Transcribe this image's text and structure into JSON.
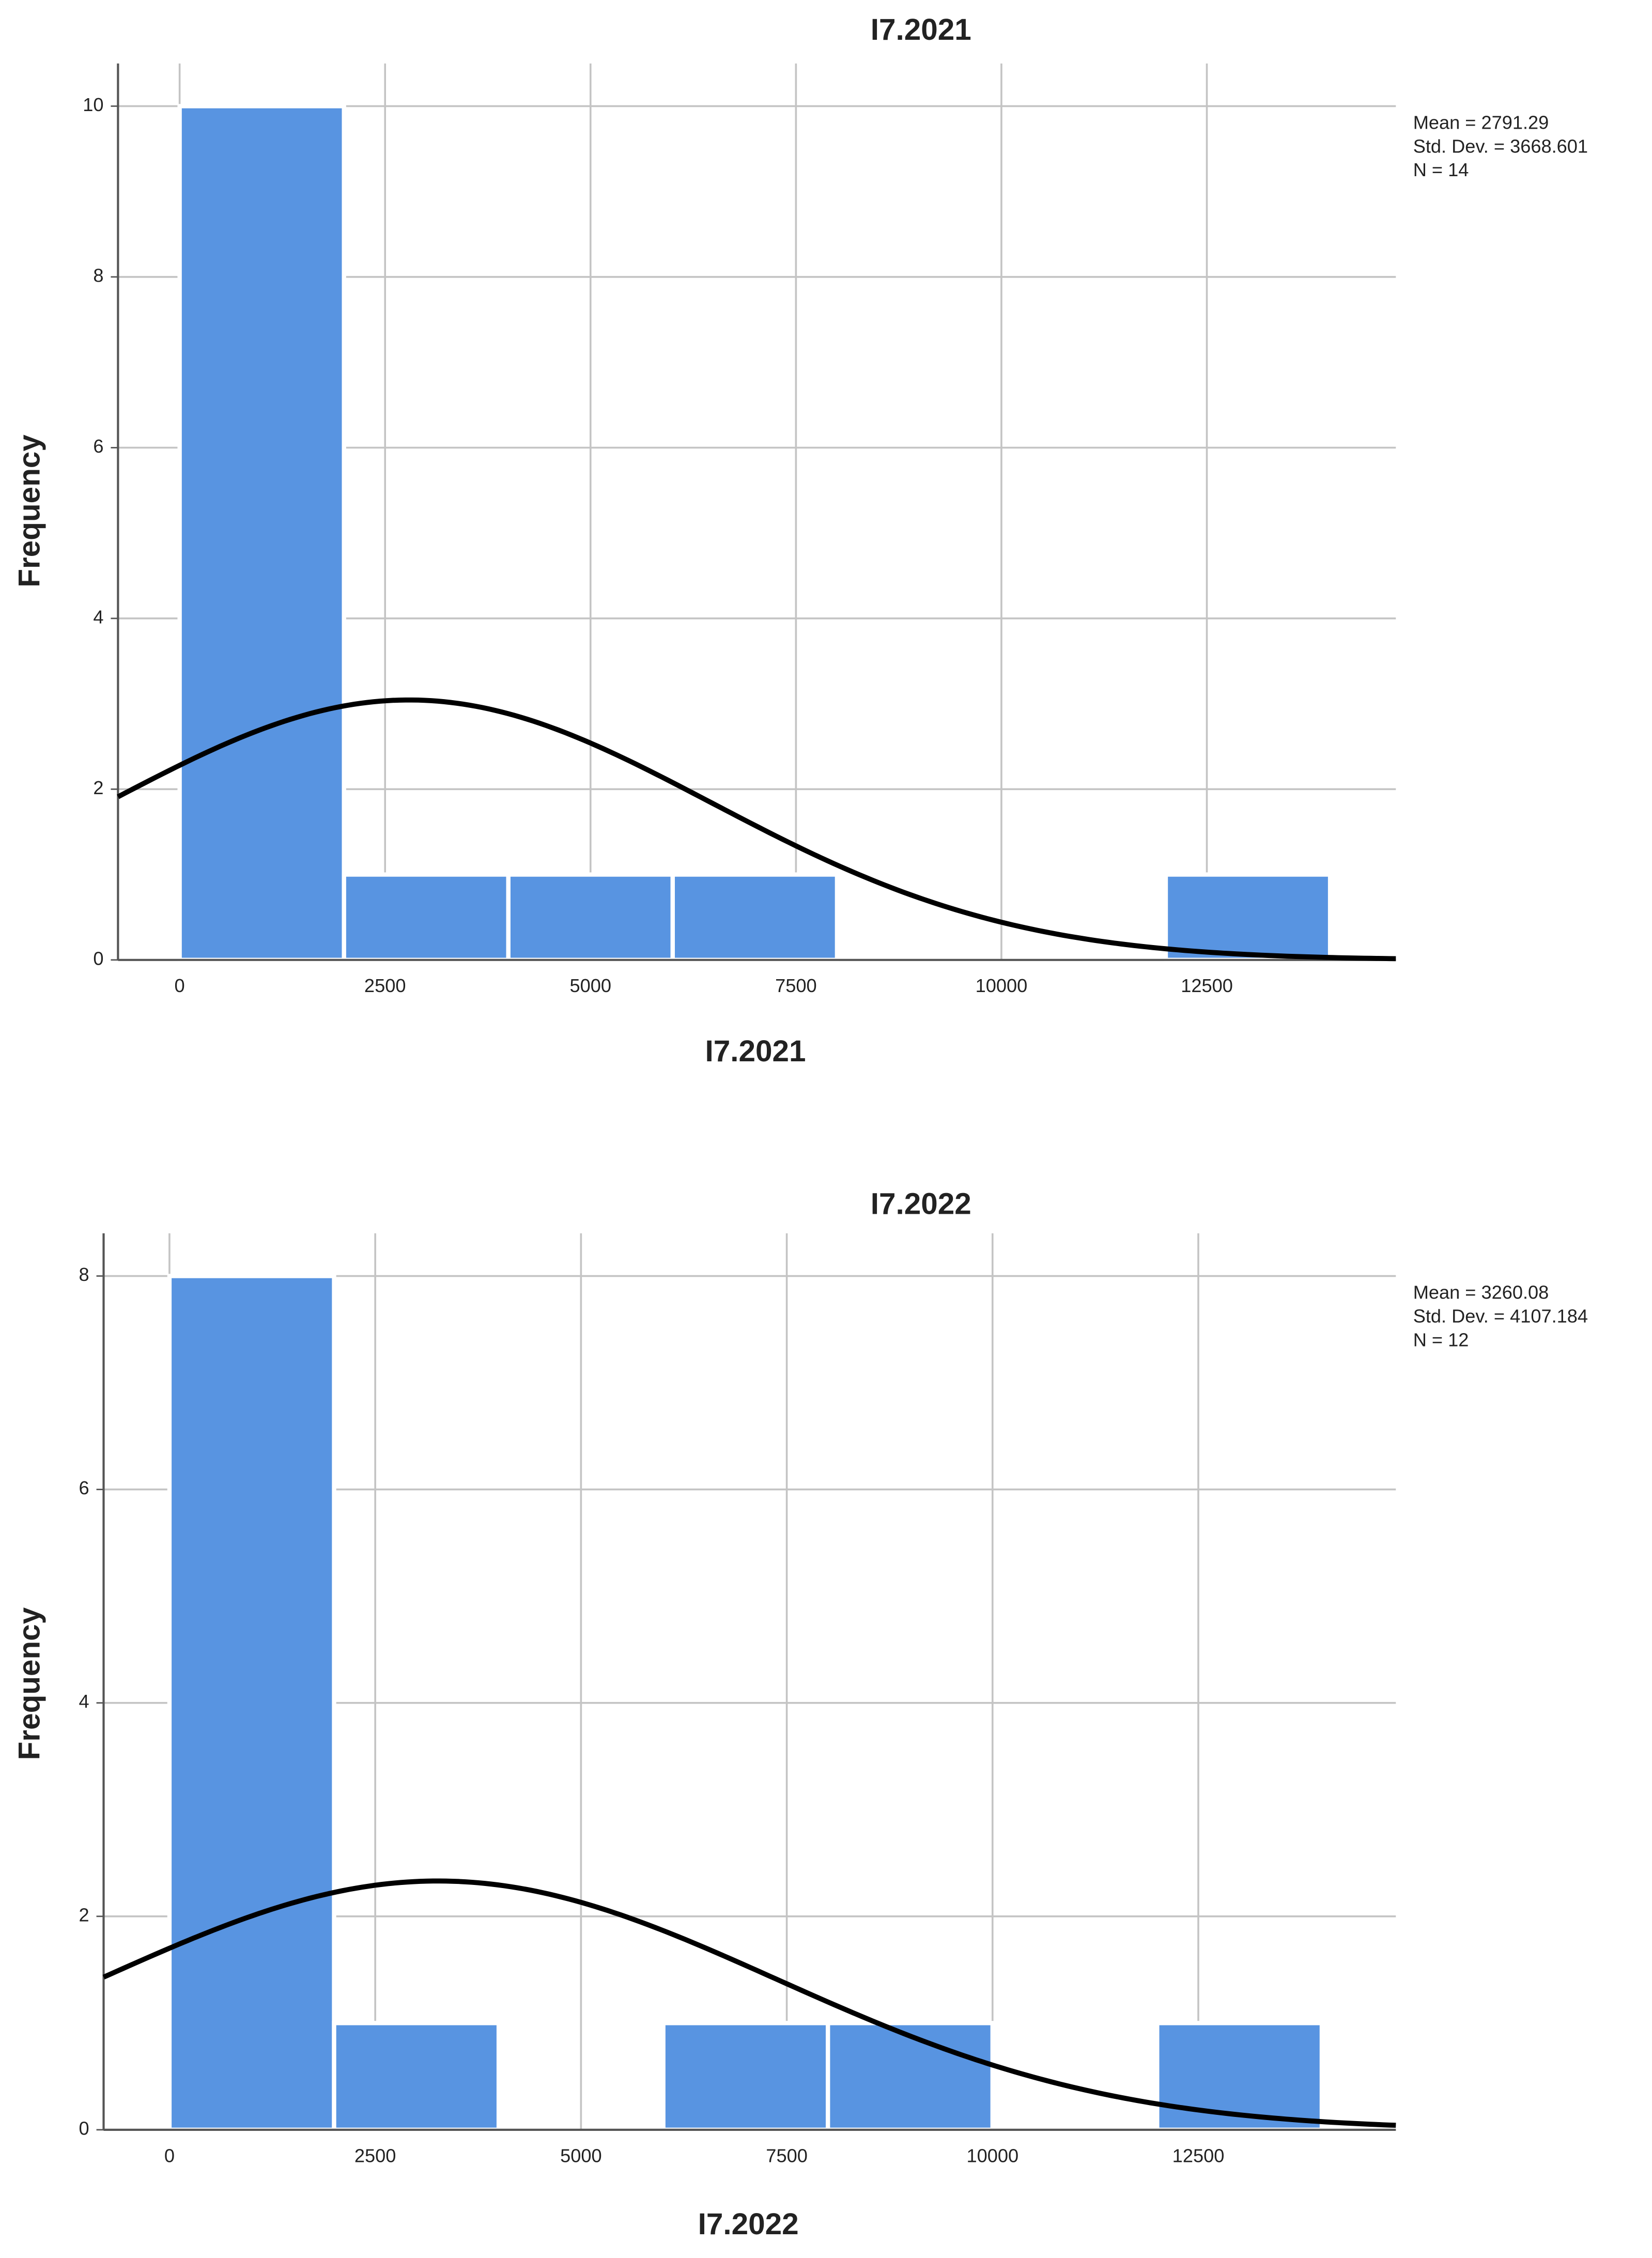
{
  "chart_data": [
    {
      "type": "histogram",
      "title": "I7.2021",
      "xlabel": "I7.2021",
      "ylabel": "Frequency",
      "bins": [
        0,
        2000,
        4000,
        6000,
        8000,
        10000,
        12000,
        14000
      ],
      "values": [
        10,
        1,
        1,
        1,
        0,
        0,
        1
      ],
      "color": "#5894e1",
      "xlim": [
        -750,
        14800
      ],
      "ylim": [
        0,
        10.5
      ],
      "xticks": [
        0,
        2500,
        5000,
        7500,
        10000,
        12500
      ],
      "yticks": [
        0,
        2,
        4,
        6,
        8,
        10
      ],
      "grid": true,
      "annotations": [
        {
          "value": 2791.29,
          "label": "Mean = 2791.29"
        },
        {
          "value": 3668.601,
          "label": "Std. Dev. = 3668.601"
        },
        {
          "value": 14,
          "label": "N = 14"
        }
      ]
    },
    {
      "type": "histogram",
      "title": "I7.2022",
      "xlabel": "I7.2022",
      "ylabel": "Frequency",
      "bins": [
        0,
        2000,
        4000,
        6000,
        8000,
        10000,
        12000,
        14000
      ],
      "values": [
        8,
        1,
        0,
        1,
        1,
        0,
        1
      ],
      "color": "#5894e1",
      "xlim": [
        -800,
        14900
      ],
      "ylim": [
        0,
        8.4
      ],
      "xticks": [
        0,
        2500,
        5000,
        7500,
        10000,
        12500
      ],
      "yticks": [
        0,
        2,
        4,
        6,
        8
      ],
      "grid": true,
      "annotations": [
        {
          "value": 3260.08,
          "label": "Mean = 3260.08"
        },
        {
          "value": 4107.184,
          "label": "Std. Dev. = 4107.184"
        },
        {
          "value": 12,
          "label": "N = 12"
        }
      ]
    }
  ]
}
